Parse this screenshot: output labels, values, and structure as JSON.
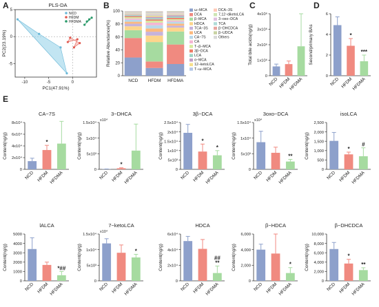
{
  "figure": {
    "panel_letters": [
      "A",
      "B",
      "C",
      "D",
      "E"
    ],
    "groups": [
      "NCD",
      "HFDM",
      "HFDMA"
    ],
    "colors": {
      "NCD": "#8da0cb",
      "HFDM": "#f08a80",
      "HFDMA": "#a6dba0"
    }
  },
  "chart_data": [
    {
      "id": "A",
      "type": "scatter",
      "title": "PLS-DA",
      "xlabel": "PC1(47.91%)",
      "ylabel": "PC2(23.19%)",
      "xlim": [
        -12,
        5
      ],
      "ylim": [
        -7.5,
        5
      ],
      "x_ticks": [
        -10,
        -5,
        0
      ],
      "y_ticks": [
        5,
        0,
        -5
      ],
      "legend": [
        "NCD",
        "HFDM",
        "HFDMA"
      ],
      "series": [
        {
          "name": "NCD",
          "points": [
            [
              -11.5,
              3.2
            ],
            [
              -1.2,
              -6.8
            ],
            [
              -2.5,
              -2.0
            ],
            [
              -7.0,
              0.5
            ]
          ]
        },
        {
          "name": "HFDM",
          "points": [
            [
              -1.0,
              -1.0
            ],
            [
              1.0,
              -0.5
            ],
            [
              0.3,
              -2.0
            ],
            [
              1.5,
              -1.2
            ],
            [
              -0.5,
              -0.2
            ]
          ]
        },
        {
          "name": "HFDMA",
          "points": [
            [
              2.5,
              2.2
            ],
            [
              4.0,
              3.5
            ],
            [
              3.0,
              2.8
            ],
            [
              3.5,
              3.2
            ]
          ]
        }
      ]
    },
    {
      "id": "B",
      "type": "bar",
      "stacked": true,
      "ylabel": "Relative Abundance(%)",
      "ylim": [
        0,
        100
      ],
      "y_ticks": [
        0,
        20,
        40,
        60,
        80,
        100
      ],
      "categories": [
        "NCD",
        "HFDM",
        "HFDMA"
      ],
      "legend_col1": [
        "ω−MCA",
        "DCA",
        "β−MCA",
        "HDCA",
        "TCA−3S",
        "UCA",
        "CA−7S",
        "CA",
        "T−β−MCA",
        "3β−DCA",
        "LCA",
        "α−MCA",
        "12−ketoLCA",
        "T−ω−MCA"
      ],
      "legend_col2": [
        "DCA−3S",
        "7,12−diketoLCA",
        "3−oxo−DCA",
        "TCA",
        "β−DHCDCA",
        "β−UDCA",
        "Others"
      ],
      "series": [
        {
          "name": "ω−MCA",
          "color": "#8da0cb",
          "values": [
            28,
            12,
            18
          ]
        },
        {
          "name": "DCA",
          "color": "#f08a80",
          "values": [
            30,
            10,
            30
          ]
        },
        {
          "name": "β−MCA",
          "color": "#a6dba0",
          "values": [
            12,
            30,
            20
          ]
        },
        {
          "name": "HDCA",
          "color": "#fdd58c",
          "values": [
            6,
            10,
            6
          ]
        },
        {
          "name": "TCA−3S",
          "color": "#c6b3db",
          "values": [
            4,
            6,
            3
          ]
        },
        {
          "name": "UCA",
          "color": "#fcb97d",
          "values": [
            3,
            5,
            3
          ]
        },
        {
          "name": "CA−7S",
          "color": "#b9d8ea",
          "values": [
            3,
            5,
            3
          ]
        },
        {
          "name": "CA",
          "color": "#f4b6d2",
          "values": [
            2,
            4,
            2
          ]
        },
        {
          "name": "T−β−MCA",
          "color": "#d6ea9e",
          "values": [
            2,
            3,
            2
          ]
        },
        {
          "name": "3β−DCA",
          "color": "#ee7d68",
          "values": [
            1.5,
            2,
            2
          ]
        },
        {
          "name": "LCA",
          "color": "#9fd4c6",
          "values": [
            1.5,
            2,
            2
          ]
        },
        {
          "name": "α−MCA",
          "color": "#c0a0c8",
          "values": [
            1,
            2,
            2
          ]
        },
        {
          "name": "12−ketoLCA",
          "color": "#f7e08b",
          "values": [
            1,
            2,
            1
          ]
        },
        {
          "name": "T−ω−MCA",
          "color": "#b5c7e6",
          "values": [
            1,
            1.5,
            1
          ]
        },
        {
          "name": "DCA−3S",
          "color": "#ffcab8",
          "values": [
            0.8,
            1,
            1
          ]
        },
        {
          "name": "7,12−diketoLCA",
          "color": "#cde6b4",
          "values": [
            0.6,
            1,
            0.8
          ]
        },
        {
          "name": "3−oxo−DCA",
          "color": "#e0c0e0",
          "values": [
            0.5,
            0.8,
            0.7
          ]
        },
        {
          "name": "TCA",
          "color": "#b0dcd8",
          "values": [
            0.5,
            0.7,
            0.5
          ]
        },
        {
          "name": "β−DHCDCA",
          "color": "#e8a6a0",
          "values": [
            0.4,
            0.6,
            0.5
          ]
        },
        {
          "name": "β−UDCA",
          "color": "#c9d3a3",
          "values": [
            0.3,
            0.4,
            0.5
          ]
        },
        {
          "name": "Others",
          "color": "#d9d9d9",
          "values": [
            0.4,
            1.0,
            0.5
          ]
        }
      ]
    },
    {
      "id": "C",
      "type": "bar",
      "ylabel": "Total bile acids(ng/g)",
      "categories": [
        "NCD",
        "HFDM",
        "HFDMA"
      ],
      "ylim": [
        0,
        4000000
      ],
      "y_ticks": [
        0,
        1000000,
        2000000,
        3000000,
        4000000
      ],
      "y_tick_labels": [
        "0",
        "1x10⁶",
        "2x10⁶",
        "3x10⁶",
        "4x10⁶"
      ],
      "values": [
        600000,
        750000,
        1900000
      ],
      "errors": [
        150000,
        200000,
        2100000
      ],
      "sig": [
        "",
        "",
        ""
      ]
    },
    {
      "id": "D",
      "type": "bar",
      "ylabel": "Second/primary BAs",
      "categories": [
        "NCD",
        "HFDM",
        "HFDMA"
      ],
      "ylim": [
        0,
        6
      ],
      "y_ticks": [
        0,
        2,
        4,
        6
      ],
      "y_tick_labels": [
        "0",
        "2",
        "4",
        "6"
      ],
      "values": [
        4.9,
        2.9,
        1.4
      ],
      "errors": [
        0.8,
        0.7,
        0.6
      ],
      "sig": [
        "",
        "*",
        "***"
      ]
    },
    {
      "id": "E1",
      "type": "bar",
      "title": "CA−7S",
      "ylabel": "Content(ng/g)",
      "categories": [
        "NCD",
        "HFDM",
        "HFDMA"
      ],
      "ylim": [
        0,
        80000
      ],
      "y_ticks": [
        0,
        20000,
        40000,
        60000,
        80000
      ],
      "y_tick_labels": [
        "0",
        "2x10⁴",
        "4x10⁴",
        "6x10⁴",
        "8x10⁴"
      ],
      "values": [
        14000,
        33000,
        44000
      ],
      "errors": [
        5000,
        8000,
        38000
      ],
      "sig": [
        "",
        "*",
        ""
      ]
    },
    {
      "id": "E2",
      "type": "bar",
      "title": "3−DHCA",
      "ylabel": "Content(ng/g)",
      "categories": [
        "NCD",
        "HFDM",
        "HFDMA"
      ],
      "ylim": [
        0,
        15000
      ],
      "exponent": "x10⁴",
      "y_ticks": [
        0,
        5000,
        10000,
        15000
      ],
      "y_tick_labels": [
        "0",
        "5x10³",
        "1x10⁴",
        "1.5x10⁴"
      ],
      "values": [
        80,
        350,
        6000
      ],
      "errors": [
        40,
        150,
        8500
      ],
      "sig": [
        "",
        "*",
        ""
      ]
    },
    {
      "id": "E3",
      "type": "bar",
      "title": "3β−DCA",
      "ylabel": "Content(ng/g)",
      "categories": [
        "NCD",
        "HFDM",
        "HFDMA"
      ],
      "ylim": [
        0,
        25000
      ],
      "y_ticks": [
        0,
        5000,
        10000,
        15000,
        20000,
        25000
      ],
      "y_tick_labels": [
        "0",
        "5x10³",
        "1x10⁴",
        "1.5x10⁴",
        "2x10⁴",
        "2.5x10⁴"
      ],
      "values": [
        19500,
        9500,
        7500
      ],
      "errors": [
        4500,
        4000,
        2500
      ],
      "sig": [
        "",
        "*",
        "*"
      ]
    },
    {
      "id": "E4",
      "type": "bar",
      "title": "3oxo−DCA",
      "ylabel": "Content(ng/g)",
      "categories": [
        "NCD",
        "HFDM",
        "HFDMA"
      ],
      "ylim": [
        0,
        15000
      ],
      "exponent": "x10⁴",
      "y_ticks": [
        0,
        5000,
        10000,
        15000
      ],
      "y_tick_labels": [
        "0",
        "5x10³",
        "1x10⁴",
        "1.5x10⁴"
      ],
      "values": [
        8700,
        5300,
        2500
      ],
      "errors": [
        3500,
        1800,
        700
      ],
      "sig": [
        "",
        "",
        "**"
      ]
    },
    {
      "id": "E5",
      "type": "bar",
      "title": "isoLCA",
      "ylabel": "Content(ng/g)",
      "categories": [
        "NCD",
        "HFDM",
        "HFDMA"
      ],
      "ylim": [
        0,
        2500
      ],
      "y_ticks": [
        0,
        500,
        1000,
        1500,
        2000,
        2500
      ],
      "y_tick_labels": [
        "0",
        "500",
        "1,000",
        "1,500",
        "2,000",
        "2,500"
      ],
      "values": [
        1520,
        800,
        700
      ],
      "errors": [
        450,
        120,
        450
      ],
      "sig": [
        "",
        "*",
        "#"
      ]
    },
    {
      "id": "E6",
      "type": "bar",
      "title": "lALCA",
      "ylabel": "Content(ng/g)",
      "categories": [
        "NCD",
        "HFDM",
        "HFDMA"
      ],
      "ylim": [
        0,
        5000
      ],
      "y_ticks": [
        0,
        1000,
        2000,
        3000,
        4000,
        5000
      ],
      "y_tick_labels": [
        "0",
        "1000",
        "2000",
        "3000",
        "4000",
        "5000"
      ],
      "values": [
        3400,
        1700,
        600
      ],
      "errors": [
        1200,
        300,
        400
      ],
      "sig": [
        "",
        "",
        "*##"
      ]
    },
    {
      "id": "E7",
      "type": "bar",
      "title": "7−ketoLCA",
      "ylabel": "Content(ng/g)",
      "categories": [
        "NCD",
        "HFDM",
        "HFDMA"
      ],
      "ylim": [
        0,
        15000
      ],
      "exponent": "x10⁴",
      "y_ticks": [
        0,
        5000,
        10000,
        15000
      ],
      "y_tick_labels": [
        "0",
        "5x10³",
        "1x10⁴",
        "1.5x10⁴"
      ],
      "values": [
        12000,
        9000,
        7500
      ],
      "errors": [
        1500,
        2500,
        1000
      ],
      "sig": [
        "",
        "",
        "*"
      ]
    },
    {
      "id": "E8",
      "type": "bar",
      "title": "HDCA",
      "ylabel": "Content(ng/g)",
      "categories": [
        "NCD",
        "HFDM",
        "HFDMA"
      ],
      "ylim": [
        0,
        60000
      ],
      "y_ticks": [
        0,
        20000,
        40000,
        60000
      ],
      "y_tick_labels": [
        "0",
        "2x10⁴",
        "4x10⁴",
        "6x10⁴"
      ],
      "values": [
        51000,
        41000,
        10000
      ],
      "errors": [
        6000,
        12000,
        9000
      ],
      "sig": [
        "",
        "",
        "##\n**"
      ]
    },
    {
      "id": "E9",
      "type": "bar",
      "title": "β−HDCA",
      "ylabel": "Content(ng/g)",
      "categories": [
        "NCD",
        "HFDM",
        "HFDMA"
      ],
      "ylim": [
        0,
        6000
      ],
      "y_ticks": [
        0,
        2000,
        4000,
        6000
      ],
      "y_tick_labels": [
        "0",
        "2,000",
        "4,000",
        "6,000"
      ],
      "values": [
        4000,
        3500,
        1000
      ],
      "errors": [
        700,
        2500,
        700
      ],
      "sig": [
        "",
        "",
        "*"
      ]
    },
    {
      "id": "E10",
      "type": "bar",
      "title": "β−DHCDCA",
      "ylabel": "Content(ng/g)",
      "categories": [
        "NCD",
        "HFDM",
        "HFDMA"
      ],
      "ylim": [
        0,
        10000
      ],
      "y_ticks": [
        0,
        2000,
        4000,
        6000,
        8000,
        10000
      ],
      "y_tick_labels": [
        "0",
        "2,000",
        "4,000",
        "6,000",
        "8,000",
        "10,000"
      ],
      "values": [
        6800,
        3700,
        2300
      ],
      "errors": [
        1400,
        900,
        500
      ],
      "sig": [
        "",
        "*",
        "**"
      ]
    }
  ]
}
